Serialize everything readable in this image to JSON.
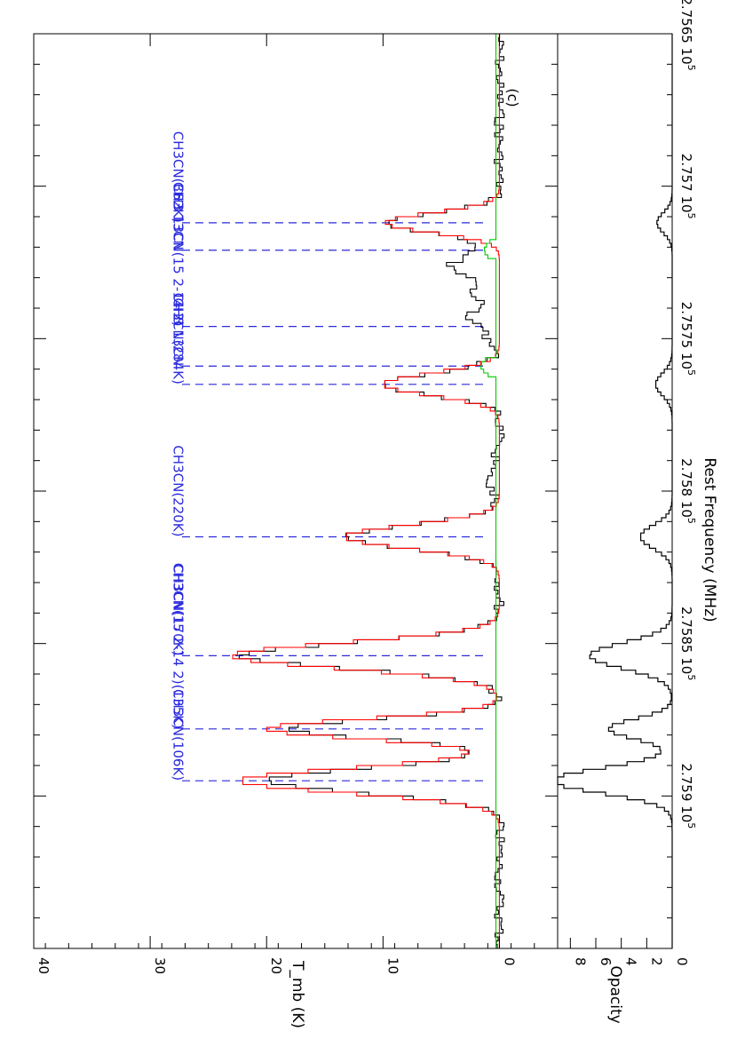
{
  "chart_data": {
    "type": "line",
    "panel_label": "(c)",
    "xlabel": "Rest Frequency (MHz)",
    "xlim": [
      275650,
      275950
    ],
    "x_ticks": [
      {
        "value": 275650,
        "mantissa": "2.7565",
        "exponent": "5"
      },
      {
        "value": 275700,
        "mantissa": "2.757",
        "exponent": "5"
      },
      {
        "value": 275750,
        "mantissa": "2.7575",
        "exponent": "5"
      },
      {
        "value": 275800,
        "mantissa": "2.758",
        "exponent": "5"
      },
      {
        "value": 275850,
        "mantissa": "2.7585",
        "exponent": "5"
      },
      {
        "value": 275900,
        "mantissa": "2.759",
        "exponent": "5"
      }
    ],
    "top_panel": {
      "ylabel": "T_mb (K)",
      "ylim": [
        -5,
        40
      ],
      "yticks": [
        0,
        10,
        20,
        30,
        40
      ],
      "ytick_labels": [
        "0",
        "10",
        "20",
        "30",
        "40"
      ],
      "series": [
        {
          "name": "observed",
          "color": "#000000",
          "peaks": [
            {
              "x": 275712,
              "amp": 9.5,
              "w": 3.2
            },
            {
              "x": 275724,
              "amp": 3.0,
              "w": 4.5
            },
            {
              "x": 275746,
              "amp": 1.5,
              "w": 4.0
            },
            {
              "x": 275765,
              "amp": 9.8,
              "w": 3.6
            },
            {
              "x": 275815,
              "amp": 13.0,
              "w": 3.8
            },
            {
              "x": 275854,
              "amp": 22.0,
              "w": 4.2
            },
            {
              "x": 275878,
              "amp": 18.0,
              "w": 3.2
            },
            {
              "x": 275895,
              "amp": 20.0,
              "w": 4.0
            }
          ]
        },
        {
          "name": "model",
          "color": "#ff0000",
          "peaks": [
            {
              "x": 275712,
              "amp": 9.8,
              "w": 3.2
            },
            {
              "x": 275765,
              "amp": 10.0,
              "w": 3.6
            },
            {
              "x": 275815,
              "amp": 13.3,
              "w": 3.8
            },
            {
              "x": 275854,
              "amp": 23.0,
              "w": 4.2
            },
            {
              "x": 275878,
              "amp": 20.0,
              "w": 3.2
            },
            {
              "x": 275895,
              "amp": 22.3,
              "w": 4.0
            }
          ]
        },
        {
          "name": "baseline",
          "color": "#00cc00",
          "level": 0.3
        }
      ],
      "markers": [
        {
          "x": 275712,
          "label": "CH3CN(362K)"
        },
        {
          "x": 275721,
          "label": "CH3 13CN"
        },
        {
          "x": 275746,
          "label": "CH3 13CN(15 2-14 2)"
        },
        {
          "x": 275759,
          "label": "CH3 13CN"
        },
        {
          "x": 275765,
          "label": "CH3CN(284K)"
        },
        {
          "x": 275815,
          "label": "CH3CN(220K)"
        },
        {
          "x": 275854,
          "label": "CH3CN(170K)"
        },
        {
          "x": 275878,
          "label": "CH3CN(15 2-14 2)(135K)"
        },
        {
          "x": 275895,
          "label": "CH3CN(106K)"
        }
      ]
    },
    "bottom_panel": {
      "ylabel": "Opacity",
      "ylim": [
        0,
        9
      ],
      "yticks": [
        0,
        2,
        4,
        6,
        8
      ],
      "ytick_labels": [
        "0",
        "2",
        "4",
        "6",
        "8"
      ],
      "series": [
        {
          "name": "opacity",
          "color": "#000000",
          "peaks": [
            {
              "x": 275712,
              "amp": 1.2,
              "w": 3.2
            },
            {
              "x": 275765,
              "amp": 1.3,
              "w": 3.6
            },
            {
              "x": 275815,
              "amp": 2.5,
              "w": 3.8
            },
            {
              "x": 275854,
              "amp": 6.5,
              "w": 4.2
            },
            {
              "x": 275878,
              "amp": 5.0,
              "w": 3.2
            },
            {
              "x": 275895,
              "amp": 9.5,
              "w": 4.0
            }
          ]
        }
      ]
    },
    "colors": {
      "marker": "#2a2add",
      "axis": "#000000"
    }
  }
}
